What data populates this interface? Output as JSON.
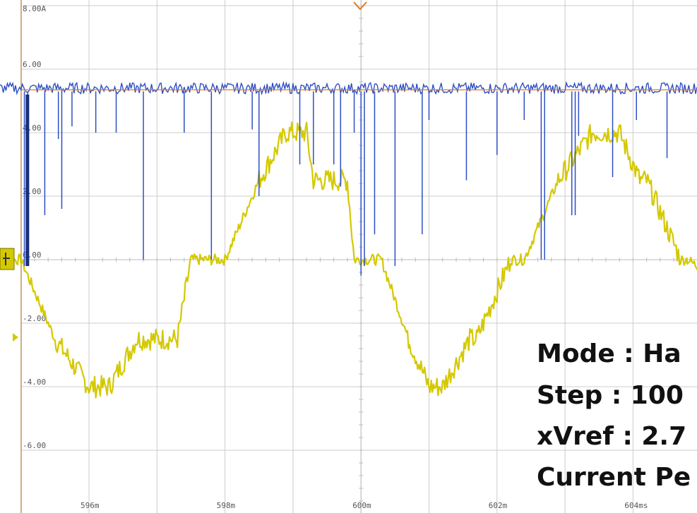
{
  "chart_data": {
    "type": "line",
    "title": "",
    "xlabel": "",
    "ylabel": "",
    "xlim": [
      594.5,
      605.3
    ],
    "ylim": [
      -7.5,
      8.0
    ],
    "grid": true,
    "y_tick_labels": [
      {
        "value": 8.0,
        "label": "8.00A"
      },
      {
        "value": 6.0,
        "label": "6.00"
      },
      {
        "value": 4.0,
        "label": "4.00"
      },
      {
        "value": 2.0,
        "label": "2.00"
      },
      {
        "value": 0.0,
        "label": "0.00"
      },
      {
        "value": -2.0,
        "label": "-2.00"
      },
      {
        "value": -4.0,
        "label": "-4.00"
      },
      {
        "value": -6.0,
        "label": "-6.00"
      }
    ],
    "x_tick_labels": [
      {
        "value": 596,
        "label": "596m"
      },
      {
        "value": 598,
        "label": "598m"
      },
      {
        "value": 600,
        "label": "600m"
      },
      {
        "value": 602,
        "label": "602m"
      },
      {
        "value": 604,
        "label": "604ms"
      }
    ],
    "series": [
      {
        "color": "#d4c900",
        "x": [
          594.6,
          595.0,
          595.5,
          596.0,
          596.3,
          596.7,
          596.8,
          597.3,
          597.5,
          598.0,
          598.5,
          598.9,
          599.2,
          599.3,
          599.8,
          599.9,
          600.3,
          600.7,
          601.0,
          601.2,
          601.6,
          601.7,
          602.2,
          602.4,
          602.9,
          603.4,
          603.8,
          604.1,
          604.2,
          604.7,
          604.8,
          605.3
        ],
        "y": [
          0.0,
          0.0,
          -2.5,
          -4.0,
          -4.0,
          -2.5,
          -2.5,
          -2.5,
          0.0,
          0.0,
          2.5,
          4.0,
          4.0,
          2.5,
          2.5,
          0.0,
          0.0,
          -2.5,
          -4.0,
          -4.0,
          -2.5,
          -2.5,
          0.0,
          0.0,
          2.5,
          4.0,
          4.0,
          2.5,
          2.5,
          0.0,
          0.0,
          -0.7
        ]
      },
      {
        "color": "#2d4fc4",
        "x": [
          594.5,
          605.3
        ],
        "y": [
          5.4,
          5.4
        ],
        "spikes": [
          {
            "x": 595.05,
            "y": -0.2
          },
          {
            "x": 595.1,
            "y": -0.2
          },
          {
            "x": 595.35,
            "y": 1.4
          },
          {
            "x": 595.55,
            "y": 3.8
          },
          {
            "x": 595.6,
            "y": 1.6
          },
          {
            "x": 595.75,
            "y": 4.2
          },
          {
            "x": 596.1,
            "y": 4.0
          },
          {
            "x": 596.4,
            "y": 4.0
          },
          {
            "x": 596.8,
            "y": 0.0
          },
          {
            "x": 597.4,
            "y": 4.0
          },
          {
            "x": 597.8,
            "y": 0.0
          },
          {
            "x": 598.4,
            "y": 4.1
          },
          {
            "x": 598.5,
            "y": 2.0
          },
          {
            "x": 599.1,
            "y": 3.0
          },
          {
            "x": 599.3,
            "y": 3.0
          },
          {
            "x": 599.6,
            "y": 3.0
          },
          {
            "x": 599.7,
            "y": 2.3
          },
          {
            "x": 599.9,
            "y": 4.0
          },
          {
            "x": 600.0,
            "y": -0.5
          },
          {
            "x": 600.05,
            "y": -0.2
          },
          {
            "x": 600.2,
            "y": 0.8
          },
          {
            "x": 600.5,
            "y": -0.2
          },
          {
            "x": 600.9,
            "y": 0.8
          },
          {
            "x": 601.0,
            "y": 4.4
          },
          {
            "x": 601.55,
            "y": 2.5
          },
          {
            "x": 602.0,
            "y": 3.3
          },
          {
            "x": 602.4,
            "y": 4.4
          },
          {
            "x": 602.65,
            "y": 0.0
          },
          {
            "x": 602.7,
            "y": 0.0
          },
          {
            "x": 603.1,
            "y": 1.4
          },
          {
            "x": 603.15,
            "y": 1.4
          },
          {
            "x": 603.2,
            "y": 3.9
          },
          {
            "x": 603.7,
            "y": 2.6
          },
          {
            "x": 604.05,
            "y": 4.4
          },
          {
            "x": 604.5,
            "y": 3.2
          },
          {
            "x": 605.0,
            "y": 1.4
          },
          {
            "x": 605.3,
            "y": 3.2
          }
        ]
      }
    ]
  },
  "annotations": [
    "Mode : Ha",
    "Step : 100",
    "xVref : 2.7",
    "Current Pe"
  ],
  "colors": {
    "background": "#ffffff",
    "grid": "#cccccc",
    "axis": "#c59a54",
    "yellow_trace": "#d4c900",
    "blue_trace": "#2d4fc4",
    "trigger_line": "#e07820"
  },
  "icons": {
    "ground_marker": "channel-ground-marker-icon",
    "trigger_level": "trigger-level-arrow-icon",
    "trigger_position": "trigger-position-chevron-icon"
  }
}
